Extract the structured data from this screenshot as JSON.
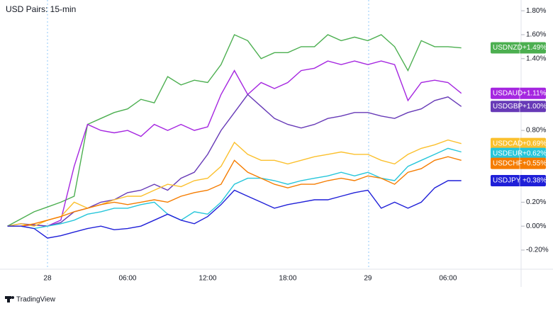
{
  "chart_data": {
    "type": "line",
    "title": "USD Pairs: 15-min",
    "categories": [
      null,
      null,
      null,
      "28",
      null,
      null,
      null,
      null,
      null,
      "06:00",
      null,
      null,
      null,
      null,
      null,
      "12:00",
      null,
      null,
      null,
      null,
      null,
      "18:00",
      null,
      null,
      null,
      null,
      null,
      "29",
      null,
      null,
      null,
      null,
      null,
      "06:00",
      null
    ],
    "ylim": [
      -0.36,
      1.89
    ],
    "yticks": [
      {
        "value": -0.2,
        "label": "-0.20%"
      },
      {
        "value": 0,
        "label": "0.00%"
      },
      {
        "value": 0.2,
        "label": "0.20%"
      },
      {
        "value": 0.8,
        "label": "0.80%"
      },
      {
        "value": 1.4,
        "label": "1.40%"
      },
      {
        "value": 1.6,
        "label": "1.60%"
      },
      {
        "value": 1.8,
        "label": "1.80%"
      }
    ],
    "series": [
      {
        "name": "USDNZD",
        "color": "#4caf50",
        "values": [
          0,
          0.06,
          0.12,
          0.16,
          0.2,
          0.25,
          0.85,
          0.9,
          0.95,
          0.98,
          1.06,
          1.03,
          1.25,
          1.18,
          1.22,
          1.2,
          1.35,
          1.6,
          1.55,
          1.4,
          1.45,
          1.45,
          1.5,
          1.5,
          1.6,
          1.55,
          1.58,
          1.55,
          1.6,
          1.5,
          1.3,
          1.55,
          1.5,
          1.5,
          1.49
        ],
        "value_labels": [
          null,
          null,
          null,
          null,
          null,
          null,
          null,
          null,
          null,
          null,
          null,
          null,
          null,
          null,
          null,
          null,
          null,
          null,
          null,
          null,
          null,
          null,
          null,
          null,
          null,
          null,
          null,
          null,
          null,
          null,
          null,
          null,
          null,
          null,
          "+1.49%"
        ]
      },
      {
        "name": "USDAUD",
        "color": "#a526e0",
        "values": [
          0,
          0.0,
          0.01,
          0.0,
          0.05,
          0.5,
          0.85,
          0.8,
          0.78,
          0.8,
          0.75,
          0.85,
          0.8,
          0.85,
          0.8,
          0.83,
          1.1,
          1.3,
          1.1,
          1.2,
          1.15,
          1.2,
          1.3,
          1.32,
          1.38,
          1.35,
          1.38,
          1.35,
          1.38,
          1.35,
          1.05,
          1.2,
          1.22,
          1.2,
          1.11
        ],
        "value_labels": [
          null,
          null,
          null,
          null,
          null,
          null,
          null,
          null,
          null,
          null,
          null,
          null,
          null,
          null,
          null,
          null,
          null,
          null,
          null,
          null,
          null,
          null,
          null,
          null,
          null,
          null,
          null,
          null,
          null,
          null,
          null,
          null,
          null,
          null,
          "+1.11%"
        ]
      },
      {
        "name": "USDGBP",
        "color": "#673ab7",
        "values": [
          0,
          0.02,
          0.01,
          0.0,
          0.03,
          0.12,
          0.15,
          0.2,
          0.22,
          0.28,
          0.3,
          0.35,
          0.3,
          0.4,
          0.45,
          0.6,
          0.8,
          0.95,
          1.1,
          1.0,
          0.9,
          0.85,
          0.82,
          0.85,
          0.9,
          0.92,
          0.95,
          0.95,
          0.92,
          0.9,
          0.95,
          0.98,
          1.05,
          1.08,
          1.0
        ],
        "value_labels": [
          null,
          null,
          null,
          null,
          null,
          null,
          null,
          null,
          null,
          null,
          null,
          null,
          null,
          null,
          null,
          null,
          null,
          null,
          null,
          null,
          null,
          null,
          null,
          null,
          null,
          null,
          null,
          null,
          null,
          null,
          null,
          null,
          null,
          null,
          "+1.00%"
        ]
      },
      {
        "name": "USDCAD",
        "color": "#fbc02d",
        "values": [
          0,
          0.02,
          0.0,
          0.05,
          0.08,
          0.2,
          0.15,
          0.18,
          0.22,
          0.25,
          0.25,
          0.3,
          0.35,
          0.33,
          0.38,
          0.4,
          0.5,
          0.7,
          0.6,
          0.55,
          0.55,
          0.52,
          0.55,
          0.58,
          0.6,
          0.62,
          0.6,
          0.6,
          0.55,
          0.52,
          0.6,
          0.65,
          0.68,
          0.72,
          0.69
        ],
        "value_labels": [
          null,
          null,
          null,
          null,
          null,
          null,
          null,
          null,
          null,
          null,
          null,
          null,
          null,
          null,
          null,
          null,
          null,
          null,
          null,
          null,
          null,
          null,
          null,
          null,
          null,
          null,
          null,
          null,
          null,
          null,
          null,
          null,
          null,
          null,
          "+0.69%"
        ]
      },
      {
        "name": "USDEUR",
        "color": "#26c6da",
        "values": [
          0,
          0.0,
          -0.02,
          0.0,
          0.02,
          0.05,
          0.1,
          0.12,
          0.15,
          0.15,
          0.18,
          0.2,
          0.1,
          0.05,
          0.12,
          0.1,
          0.2,
          0.35,
          0.4,
          0.4,
          0.38,
          0.35,
          0.38,
          0.4,
          0.42,
          0.45,
          0.42,
          0.45,
          0.4,
          0.38,
          0.5,
          0.55,
          0.6,
          0.65,
          0.62
        ],
        "value_labels": [
          null,
          null,
          null,
          null,
          null,
          null,
          null,
          null,
          null,
          null,
          null,
          null,
          null,
          null,
          null,
          null,
          null,
          null,
          null,
          null,
          null,
          null,
          null,
          null,
          null,
          null,
          null,
          null,
          null,
          null,
          null,
          null,
          null,
          null,
          "+0.62%"
        ]
      },
      {
        "name": "USDCHF",
        "color": "#f57c00",
        "values": [
          0,
          0.0,
          0.02,
          0.05,
          0.08,
          0.12,
          0.15,
          0.18,
          0.2,
          0.18,
          0.2,
          0.22,
          0.2,
          0.25,
          0.28,
          0.3,
          0.35,
          0.55,
          0.45,
          0.4,
          0.35,
          0.32,
          0.35,
          0.35,
          0.38,
          0.4,
          0.38,
          0.42,
          0.4,
          0.35,
          0.45,
          0.48,
          0.55,
          0.58,
          0.55
        ],
        "value_labels": [
          null,
          null,
          null,
          null,
          null,
          null,
          null,
          null,
          null,
          null,
          null,
          null,
          null,
          null,
          null,
          null,
          null,
          null,
          null,
          null,
          null,
          null,
          null,
          null,
          null,
          null,
          null,
          null,
          null,
          null,
          null,
          null,
          null,
          null,
          "+0.55%"
        ]
      },
      {
        "name": "USDJPY",
        "color": "#1f1fd8",
        "values": [
          0,
          0.0,
          -0.02,
          -0.1,
          -0.08,
          -0.05,
          -0.02,
          0.0,
          -0.03,
          -0.02,
          0.0,
          0.05,
          0.1,
          0.05,
          0.02,
          0.08,
          0.18,
          0.3,
          0.25,
          0.2,
          0.15,
          0.18,
          0.2,
          0.22,
          0.22,
          0.25,
          0.28,
          0.3,
          0.15,
          0.2,
          0.15,
          0.2,
          0.32,
          0.38,
          0.38
        ],
        "value_labels": [
          null,
          null,
          null,
          null,
          null,
          null,
          null,
          null,
          null,
          null,
          null,
          null,
          null,
          null,
          null,
          null,
          null,
          null,
          null,
          null,
          null,
          null,
          null,
          null,
          null,
          null,
          null,
          null,
          null,
          null,
          null,
          null,
          null,
          null,
          "+0.38%"
        ]
      }
    ]
  },
  "footer": {
    "brand": "TradingView"
  }
}
